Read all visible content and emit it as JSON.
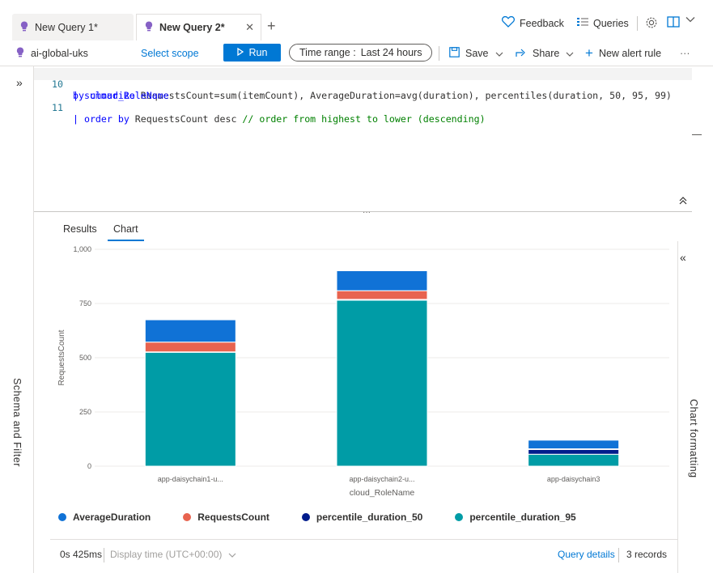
{
  "tabs": [
    {
      "label": "New Query 1*"
    },
    {
      "label": "New Query 2*"
    }
  ],
  "header": {
    "feedback": "Feedback",
    "queries": "Queries"
  },
  "toolbar": {
    "scope_name": "ai-global-uks",
    "select_scope": "Select scope",
    "run": "Run",
    "time_range_prefix": "Time range :",
    "time_range_value": "Last 24 hours",
    "save": "Save",
    "share": "Share",
    "new_alert_rule": "New alert rule",
    "more": "···"
  },
  "editor": {
    "lines": [
      {
        "num": "10",
        "pipe": "| ",
        "kw": "summarize",
        "rest": " RequestsCount=sum(itemCount), AverageDuration=avg(duration), percentiles(duration, 50, 95, 99)"
      },
      {
        "num": "",
        "cont": "by cloud_RoleName"
      },
      {
        "num": "11",
        "pipe": "| ",
        "kw": "order by",
        "rest": " RequestsCount desc ",
        "comment": "// order from highest to lower (descending)"
      }
    ]
  },
  "left_panel": {
    "label": "Schema and Filter"
  },
  "right_panel": {
    "label": "Chart formatting"
  },
  "results_tabs": [
    {
      "label": "Results",
      "active": false
    },
    {
      "label": "Chart",
      "active": true
    }
  ],
  "chart_data": {
    "type": "bar",
    "stacked": true,
    "xlabel": "cloud_RoleName",
    "ylabel": "RequestsCount",
    "ylim": [
      0,
      1000
    ],
    "yticks": [
      0,
      250,
      500,
      750,
      1000
    ],
    "ytick_labels": [
      "0",
      "250",
      "500",
      "750",
      "1,000"
    ],
    "grid": true,
    "legend_position": "bottom",
    "categories": [
      "app-daisychain1-u...",
      "app-daisychain2-u...",
      "app-daisychain3"
    ],
    "series": [
      {
        "name": "percentile_duration_95",
        "color": "#009ca6",
        "values": [
          525,
          765,
          55
        ]
      },
      {
        "name": "percentile_duration_50",
        "color": "#001c8c",
        "values": [
          2,
          4,
          22
        ]
      },
      {
        "name": "RequestsCount",
        "color": "#e8634f",
        "values": [
          45,
          40,
          3
        ]
      },
      {
        "name": "AverageDuration",
        "color": "#1072d6",
        "values": [
          103,
          92,
          40
        ]
      }
    ]
  },
  "legend": [
    {
      "name": "AverageDuration",
      "color": "#1072d6"
    },
    {
      "name": "RequestsCount",
      "color": "#e8634f"
    },
    {
      "name": "percentile_duration_50",
      "color": "#001c8c"
    },
    {
      "name": "percentile_duration_95",
      "color": "#009ca6"
    }
  ],
  "status": {
    "elapsed": "0s 425ms",
    "display_time": "Display time (UTC+00:00)",
    "query_details": "Query details",
    "records": "3 records"
  }
}
